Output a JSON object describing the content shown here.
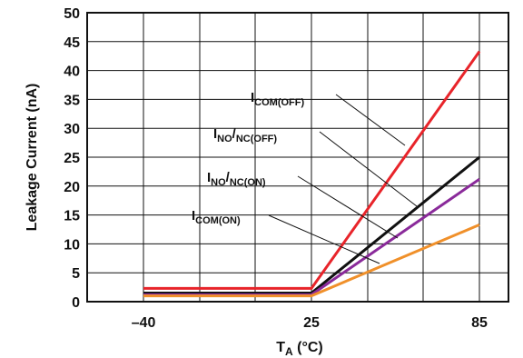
{
  "chart_data": {
    "type": "line",
    "xlabel": {
      "main": "T",
      "sub": "A",
      "rest": " (°C)"
    },
    "ylabel": "Leakage Current (nA)",
    "x_categories": [
      "–40",
      "25",
      "85"
    ],
    "ylim": [
      0,
      50
    ],
    "yticks": [
      0,
      5,
      10,
      15,
      20,
      25,
      30,
      35,
      40,
      45,
      50
    ],
    "grid": true,
    "legend": "callouts",
    "series": [
      {
        "key": "com_off",
        "label": {
          "main": "I",
          "sub": "COM(OFF)"
        },
        "color": "#e8242a",
        "points": [
          [
            -40,
            2.3
          ],
          [
            25,
            2.3
          ],
          [
            85,
            43.3
          ]
        ]
      },
      {
        "key": "no_nc_off",
        "label": {
          "main": "I",
          "sub": "NO",
          "mid": "/",
          "sub2": "NC(OFF)"
        },
        "color": "#111111",
        "points": [
          [
            -40,
            1.5
          ],
          [
            25,
            1.5
          ],
          [
            85,
            25.0
          ]
        ]
      },
      {
        "key": "no_nc_on",
        "label": {
          "main": "I",
          "sub": "NO",
          "mid": "/",
          "sub2": "NC(ON)"
        },
        "color": "#8a2a9a",
        "points": [
          [
            -40,
            1.2
          ],
          [
            25,
            1.2
          ],
          [
            85,
            21.2
          ]
        ]
      },
      {
        "key": "com_on",
        "label": {
          "main": "I",
          "sub": "COM(ON)"
        },
        "color": "#f0902a",
        "points": [
          [
            -40,
            1.0
          ],
          [
            25,
            1.0
          ],
          [
            85,
            13.3
          ]
        ]
      }
    ]
  }
}
